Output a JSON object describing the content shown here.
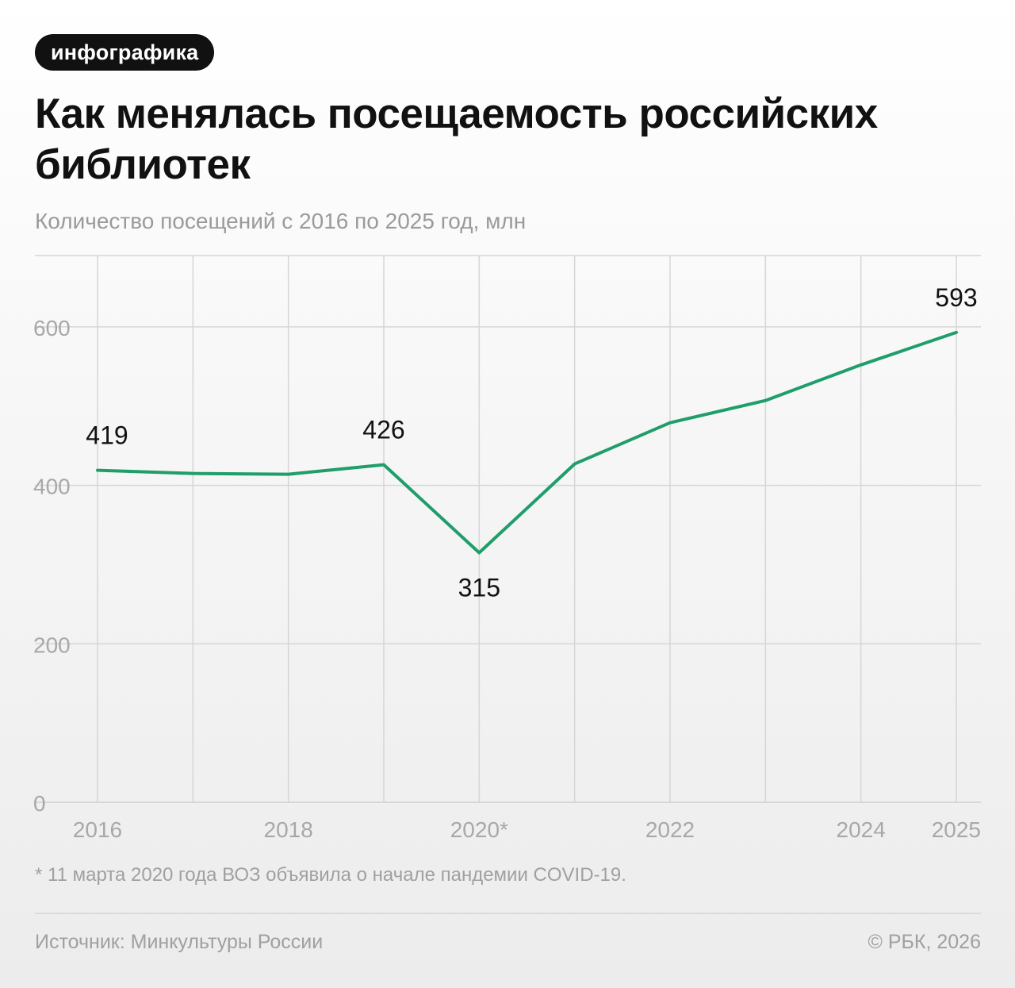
{
  "badge": "инфографика",
  "title": "Как менялась посещаемость российских библиотек",
  "subtitle": "Количество посещений с 2016 по 2025 год, млн",
  "footnote": "* 11 марта 2020 года ВОЗ объявила о начале пандемии COVID-19.",
  "source": "Источник: Минкультуры России",
  "copyright": "© РБК, 2026",
  "chart_data": {
    "type": "line",
    "x": [
      2016,
      2017,
      2018,
      2019,
      2020,
      2021,
      2022,
      2023,
      2024,
      2025
    ],
    "series": [
      {
        "values": [
          419,
          415,
          414,
          426,
          315,
          427,
          479,
          507,
          552,
          593
        ],
        "color": "#1f9e6a"
      }
    ],
    "x_tick_labels": [
      {
        "x": 2016,
        "label": "2016"
      },
      {
        "x": 2018,
        "label": "2018"
      },
      {
        "x": 2020,
        "label": "2020*"
      },
      {
        "x": 2022,
        "label": "2022"
      },
      {
        "x": 2024,
        "label": "2024"
      },
      {
        "x": 2025,
        "label": "2025"
      }
    ],
    "y_ticks": [
      0,
      200,
      400,
      600
    ],
    "ylim": [
      0,
      690
    ],
    "data_labels": [
      {
        "x": 2016,
        "label": "419",
        "position": "above"
      },
      {
        "x": 2019,
        "label": "426",
        "position": "above"
      },
      {
        "x": 2020,
        "label": "315",
        "position": "below"
      },
      {
        "x": 2025,
        "label": "593",
        "position": "above"
      }
    ],
    "grid": true
  }
}
